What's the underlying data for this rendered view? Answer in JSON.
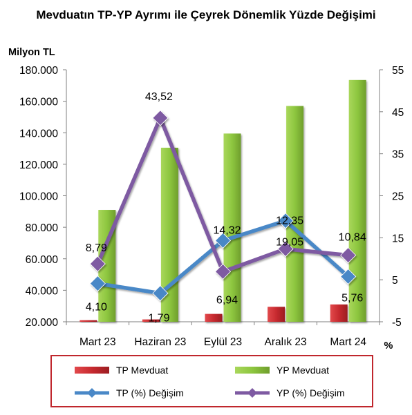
{
  "chart_data": {
    "type": "bar",
    "title": "Mevduatın TP-YP Ayrımı ile Çeyrek Dönemlik Yüzde Değişimi",
    "ylabel_left": "Milyon TL",
    "ylabel_right": "%",
    "categories": [
      "Mart 23",
      "Haziran 23",
      "Eylül 23",
      "Aralık 23",
      "Mart 24"
    ],
    "y_left": {
      "min": 20000,
      "max": 180000,
      "ticks": [
        "20.000",
        "40.000",
        "60.000",
        "80.000",
        "100.000",
        "120.000",
        "140.000",
        "160.000",
        "180.000"
      ]
    },
    "y_right": {
      "min": -5,
      "max": 55,
      "ticks": [
        "-5",
        "5",
        "15",
        "25",
        "35",
        "45",
        "55"
      ]
    },
    "series": [
      {
        "name": "TP Mevduat",
        "type": "bar",
        "axis": "left",
        "color": "#c0282d",
        "values": [
          21000,
          21500,
          25000,
          29500,
          31000
        ]
      },
      {
        "name": "YP Mevduat",
        "type": "bar",
        "axis": "left",
        "color": "#8ec740",
        "values": [
          91000,
          130500,
          139500,
          157000,
          173500
        ]
      },
      {
        "name": "TP (%) Değişim",
        "type": "line",
        "axis": "right",
        "color": "#4a88c7",
        "values": [
          4.1,
          1.79,
          14.32,
          19.05,
          5.76
        ],
        "labels": [
          "4,10",
          "1,79",
          "14,32",
          "19,05",
          "5,76"
        ]
      },
      {
        "name": "YP (%) Değişim",
        "type": "line",
        "axis": "right",
        "color": "#7e5aa2",
        "values": [
          8.79,
          43.52,
          6.94,
          12.35,
          10.84
        ],
        "labels": [
          "8,79",
          "43,52",
          "6,94",
          "12,35",
          "10,84"
        ]
      }
    ],
    "grid": false,
    "legend_position": "bottom"
  }
}
